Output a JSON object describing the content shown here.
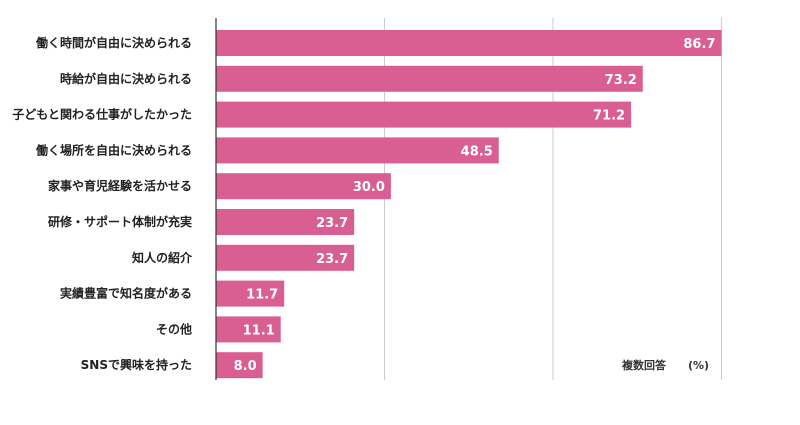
{
  "chart_data": {
    "type": "bar",
    "orientation": "horizontal",
    "categories": [
      "働く時間が自由に決められる",
      "時給が自由に決められる",
      "子どもと関わる仕事がしたかった",
      "働く場所を自由に決められる",
      "家事や育児経験を活かせる",
      "研修・サポート体制が充実",
      "知人の紹介",
      "実績豊富で知名度がある",
      "その他",
      "SNSで興味を持った"
    ],
    "values": [
      86.7,
      73.2,
      71.2,
      48.5,
      30.0,
      23.7,
      23.7,
      11.7,
      11.1,
      8.0
    ],
    "value_labels": [
      "86.7",
      "73.2",
      "71.2",
      "48.5",
      "30.0",
      "23.7",
      "23.7",
      "11.7",
      "11.1",
      "8.0"
    ],
    "xlim": [
      0,
      100
    ],
    "gridlines": [
      0,
      28.9,
      57.8,
      86.7
    ],
    "bar_color": "#d95f93",
    "grid_color": "#cccccc",
    "axis_color": "#333333",
    "note": "複数回答",
    "unit": "(%)"
  }
}
